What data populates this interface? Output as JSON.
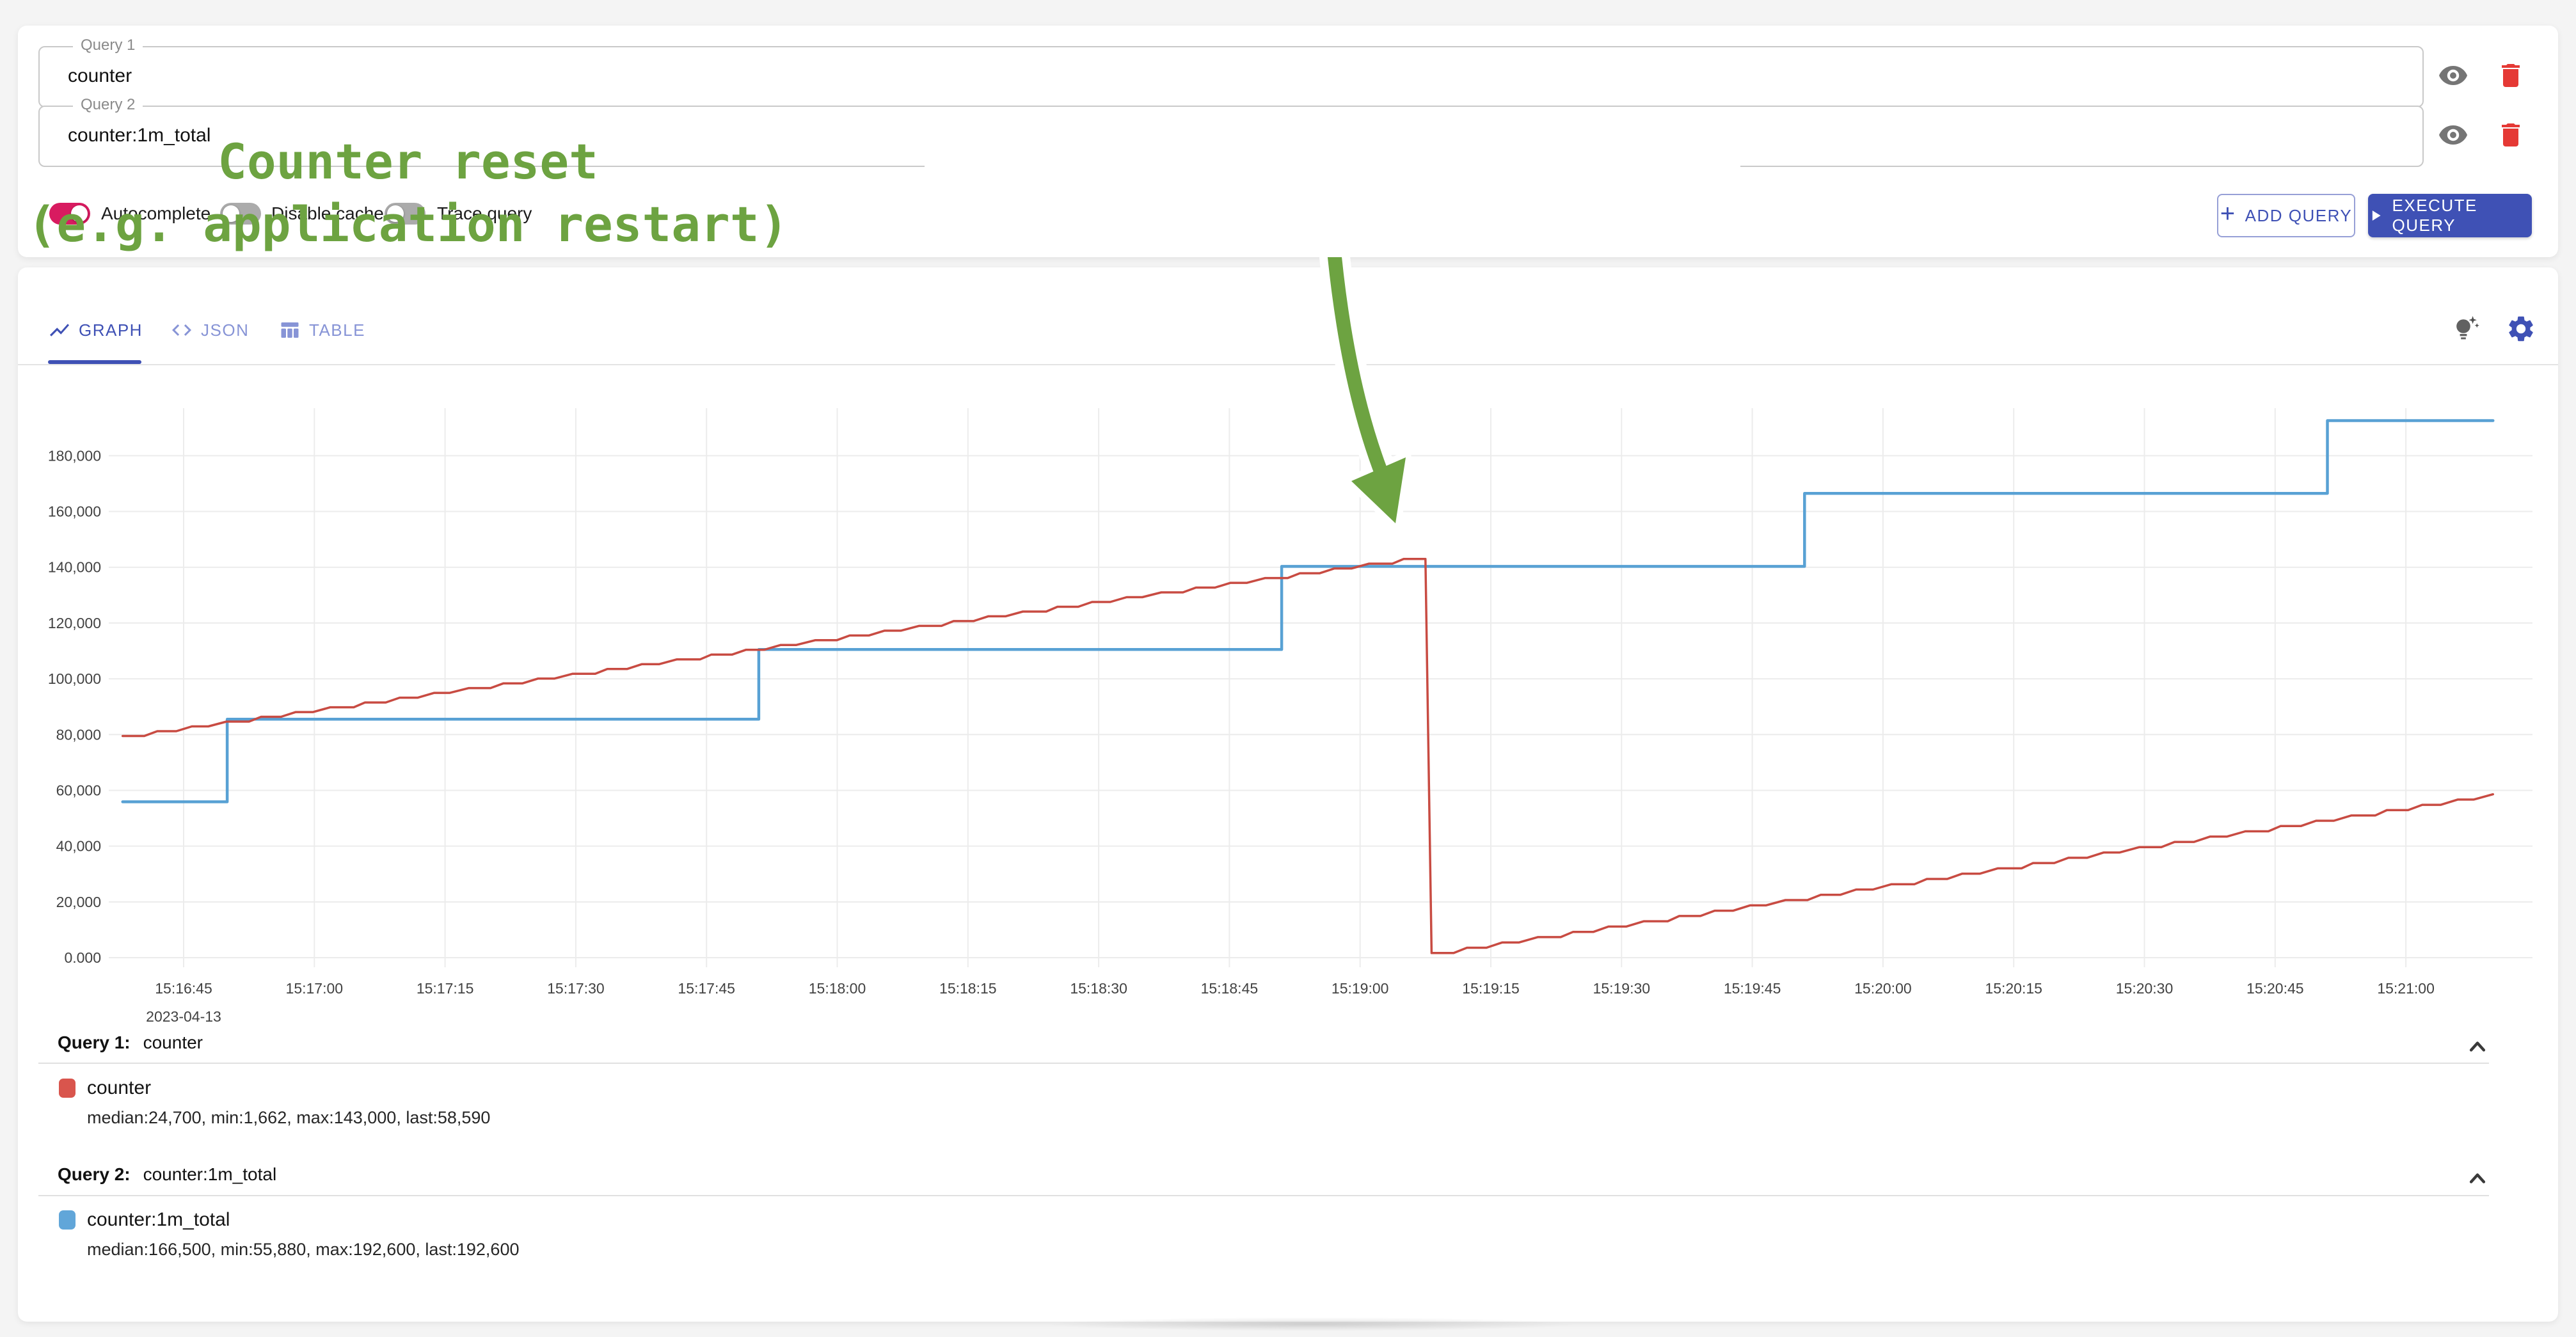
{
  "query_panel": {
    "queries": [
      {
        "label": "Query 1",
        "value": "counter"
      },
      {
        "label": "Query 2",
        "value": "counter:1m_total"
      }
    ],
    "toggles": [
      {
        "label": "Autocomplete",
        "on": true
      },
      {
        "label": "Disable cache",
        "on": false
      },
      {
        "label": "Trace query",
        "on": false
      }
    ],
    "add_query_label": "ADD QUERY",
    "execute_query_label": "EXECUTE QUERY"
  },
  "tabs": [
    {
      "label": "GRAPH",
      "active": true
    },
    {
      "label": "JSON",
      "active": false
    },
    {
      "label": "TABLE",
      "active": false
    }
  ],
  "annotation": {
    "line1": "Counter reset",
    "line2": "(e.g. application restart)",
    "color": "#6da341"
  },
  "icons": {
    "eye-icon": "visibility eye",
    "delete-icon": "red trash can",
    "lightbulb-icon": "tips lightbulb with sparkles",
    "settings-icon": "gear",
    "graph-tab-icon": "zigzag chart line",
    "json-tab-icon": "code angle brackets",
    "table-tab-icon": "table columns",
    "collapse-icon": "chevron up",
    "add-icon": "+",
    "play-icon": "right-pointing triangle"
  },
  "colors": {
    "accent": "#3f51b5",
    "toggle_on": "#d81b60",
    "series_red": "#c84b42",
    "series_blue": "#58a1d4",
    "annotation_green": "#6da341"
  },
  "chart_data": {
    "type": "line",
    "title": "",
    "xlabel": "",
    "ylabel": "",
    "x_date_label": "2023-04-13",
    "x_tick_interval_s": 15,
    "x_range_s": [
      -7,
      265
    ],
    "x_tick_labels": [
      "15:16:45",
      "15:17:00",
      "15:17:15",
      "15:17:30",
      "15:17:45",
      "15:18:00",
      "15:18:15",
      "15:18:30",
      "15:18:45",
      "15:19:00",
      "15:19:15",
      "15:19:30",
      "15:19:45",
      "15:20:00",
      "15:20:15",
      "15:20:30",
      "15:20:45",
      "15:21:00"
    ],
    "y_ticks": [
      {
        "label": "0.000",
        "value": 0
      },
      {
        "label": "20,000",
        "value": 20000
      },
      {
        "label": "40,000",
        "value": 40000
      },
      {
        "label": "60,000",
        "value": 60000
      },
      {
        "label": "80,000",
        "value": 80000
      },
      {
        "label": "100,000",
        "value": 100000
      },
      {
        "label": "120,000",
        "value": 120000
      },
      {
        "label": "140,000",
        "value": 140000
      },
      {
        "label": "160,000",
        "value": 160000
      },
      {
        "label": "180,000",
        "value": 180000
      }
    ],
    "ylim": [
      0,
      196000
    ],
    "grid": true,
    "legend_position": "bottom",
    "series": [
      {
        "name": "counter",
        "color": "#c84b42",
        "style": "stairs",
        "points": [
          [
            -7,
            79500
          ],
          [
            140,
            143000
          ],
          [
            142.5,
            143000
          ],
          [
            143.2,
            1662
          ],
          [
            265,
            58590
          ]
        ]
      },
      {
        "name": "counter:1m_total",
        "color": "#58a1d4",
        "style": "step",
        "points": [
          [
            -7,
            55880
          ],
          [
            5,
            55880
          ],
          [
            5,
            85500
          ],
          [
            66,
            85500
          ],
          [
            66,
            110500
          ],
          [
            126,
            110500
          ],
          [
            126,
            140300
          ],
          [
            186,
            140300
          ],
          [
            186,
            166500
          ],
          [
            246,
            166500
          ],
          [
            246,
            192600
          ],
          [
            265,
            192600
          ]
        ]
      }
    ]
  },
  "legend": [
    {
      "header": "Query 1:",
      "query": "counter",
      "series": "counter",
      "color": "#d9554d",
      "stats": "median:24,700, min:1,662, max:143,000, last:58,590"
    },
    {
      "header": "Query 2:",
      "query": "counter:1m_total",
      "series": "counter:1m_total",
      "color": "#61a6d9",
      "stats": "median:166,500, min:55,880, max:192,600, last:192,600"
    }
  ]
}
